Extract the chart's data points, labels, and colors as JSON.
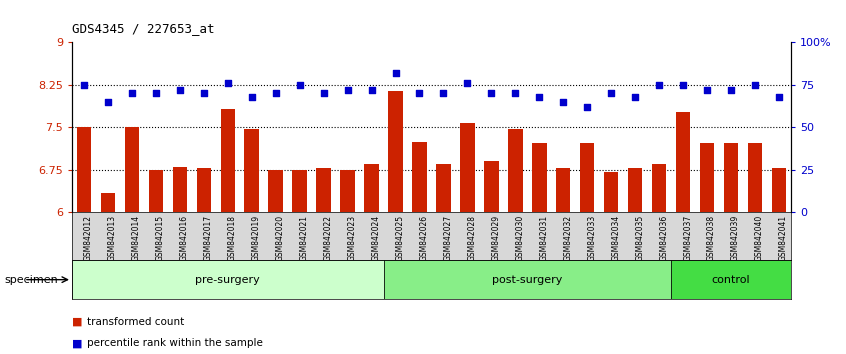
{
  "title": "GDS4345 / 227653_at",
  "samples": [
    "GSM842012",
    "GSM842013",
    "GSM842014",
    "GSM842015",
    "GSM842016",
    "GSM842017",
    "GSM842018",
    "GSM842019",
    "GSM842020",
    "GSM842021",
    "GSM842022",
    "GSM842023",
    "GSM842024",
    "GSM842025",
    "GSM842026",
    "GSM842027",
    "GSM842028",
    "GSM842029",
    "GSM842030",
    "GSM842031",
    "GSM842032",
    "GSM842033",
    "GSM842034",
    "GSM842035",
    "GSM842036",
    "GSM842037",
    "GSM842038",
    "GSM842039",
    "GSM842040",
    "GSM842041"
  ],
  "bar_values": [
    7.5,
    6.35,
    7.5,
    6.75,
    6.8,
    6.78,
    7.83,
    7.47,
    6.75,
    6.75,
    6.78,
    6.75,
    6.85,
    8.15,
    7.25,
    6.85,
    7.58,
    6.9,
    7.47,
    7.22,
    6.78,
    7.22,
    6.72,
    6.78,
    6.85,
    7.78,
    7.22,
    7.22,
    7.22,
    6.78
  ],
  "dot_values": [
    75,
    65,
    70,
    70,
    72,
    70,
    76,
    68,
    70,
    75,
    70,
    72,
    72,
    82,
    70,
    70,
    76,
    70,
    70,
    68,
    65,
    62,
    70,
    68,
    75,
    75,
    72,
    72,
    75,
    68
  ],
  "bar_color": "#cc2200",
  "dot_color": "#0000cc",
  "ylim_left": [
    6,
    9
  ],
  "ylim_right": [
    0,
    100
  ],
  "yticks_left": [
    6,
    6.75,
    7.5,
    8.25,
    9
  ],
  "yticks_right": [
    0,
    25,
    50,
    75,
    100
  ],
  "ytick_labels_right": [
    "0",
    "25",
    "50",
    "75",
    "100%"
  ],
  "hlines": [
    6.75,
    7.5,
    8.25
  ],
  "groups": [
    {
      "label": "pre-surgery",
      "start": 0,
      "end": 13
    },
    {
      "label": "post-surgery",
      "start": 13,
      "end": 25
    },
    {
      "label": "control",
      "start": 25,
      "end": 30
    }
  ],
  "group_colors_light": [
    "#ccffcc",
    "#ccffcc",
    "#66ee66"
  ],
  "specimen_label": "specimen",
  "legend_items": [
    "transformed count",
    "percentile rank within the sample"
  ],
  "legend_colors": [
    "#cc2200",
    "#0000cc"
  ],
  "xticklabel_bg": "#d8d8d8"
}
